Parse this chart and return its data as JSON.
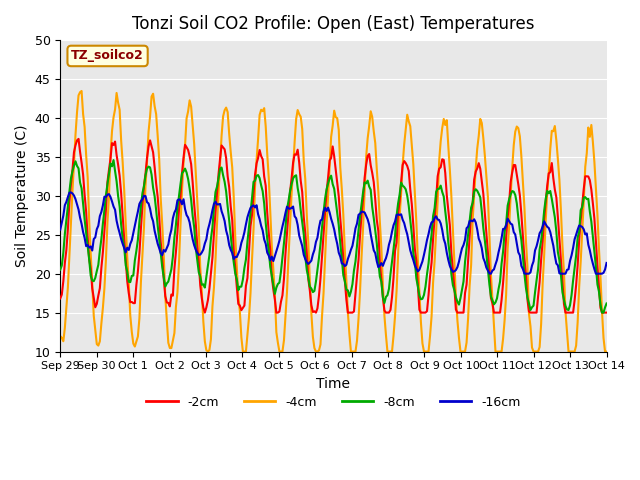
{
  "title": "Tonzi Soil CO2 Profile: Open (East) Temperatures",
  "ylabel": "Soil Temperature (C)",
  "xlabel": "Time",
  "ylim": [
    10,
    50
  ],
  "background_color": "#e8e8e8",
  "legend_label": "TZ_soilco2",
  "series_labels": [
    "-2cm",
    "-4cm",
    "-8cm",
    "-16cm"
  ],
  "series_colors": [
    "#ff0000",
    "#ffa500",
    "#00aa00",
    "#0000cc"
  ],
  "line_width": 1.5,
  "x_tick_labels": [
    "Sep 29",
    "Sep 30",
    "Oct 1",
    "Oct 2",
    "Oct 3",
    "Oct 4",
    "Oct 5",
    "Oct 6",
    "Oct 7",
    "Oct 8",
    "Oct 9",
    "Oct 10",
    "Oct 11",
    "Oct 12",
    "Oct 13",
    "Oct 14"
  ],
  "n_days": 15
}
